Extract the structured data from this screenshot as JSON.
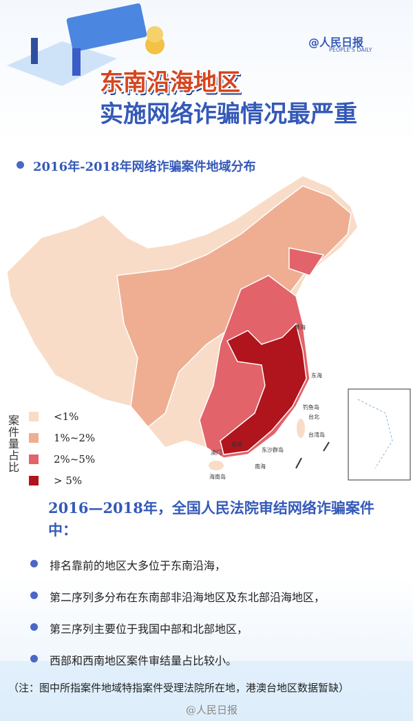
{
  "logo": {
    "at": "@",
    "name": "人民日报",
    "english": "PEOPLE'S DAILY"
  },
  "title": [
    "东南沿海地区",
    "实施网络诈骗情况最严重"
  ],
  "section_title": "2016年-2018年网络诈骗案件地域分布",
  "map": {
    "legend_title": "案件量占比",
    "legend": [
      {
        "label": "<1%",
        "color": "#f8dcc8"
      },
      {
        "label": "1%~2%",
        "color": "#efae92"
      },
      {
        "label": "2%~5%",
        "color": "#e2636a"
      },
      {
        "label": "> 5%",
        "color": "#b0141c"
      }
    ],
    "labels": [
      "黄海",
      "东海",
      "钓鱼岛",
      "台北",
      "台湾岛",
      "香港",
      "澳门",
      "东沙群岛",
      "海南岛",
      "南海"
    ]
  },
  "summary": {
    "heading": "2016—2018年，全国人民法院审结网络诈骗案件中：",
    "bullets": [
      "排名靠前的地区大多位于东南沿海，",
      "第二序列多分布在东南部非沿海地区及东北部沿海地区，",
      "第三序列主要位于我国中部和北部地区，",
      "西部和西南地区案件审结量占比较小。"
    ]
  },
  "note": "（注：图中所指案件地域特指案件受理法院所在地，港澳台地区数据暂缺）",
  "watermark": "@人民日报"
}
